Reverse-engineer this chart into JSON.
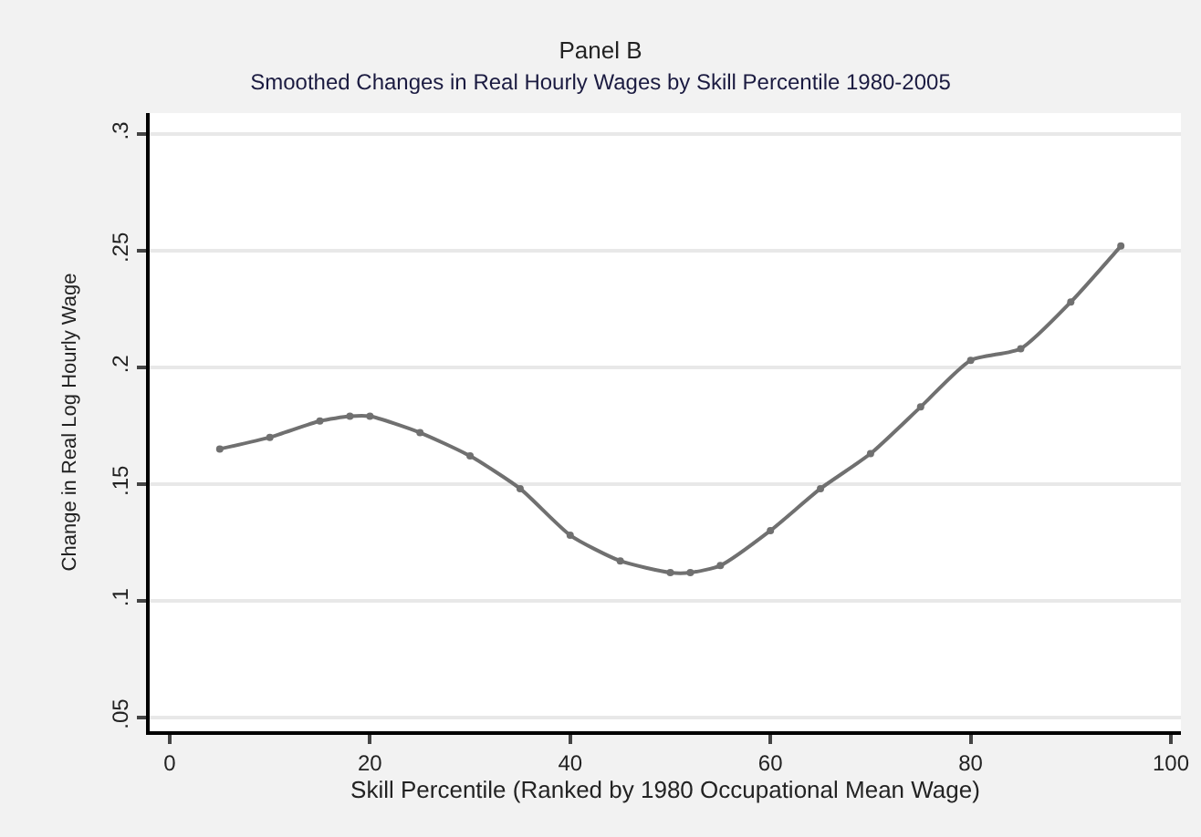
{
  "chart_data": {
    "type": "line",
    "title": "Panel B",
    "subtitle": "Smoothed Changes in Real Hourly Wages by Skill Percentile 1980-2005",
    "xlabel": "Skill Percentile (Ranked by 1980 Occupational Mean Wage)",
    "ylabel": "Change in Real Log Hourly Wage",
    "x": [
      5,
      10,
      15,
      18,
      20,
      25,
      30,
      35,
      40,
      45,
      50,
      52,
      55,
      60,
      65,
      70,
      75,
      80,
      85,
      90,
      95
    ],
    "series": [
      {
        "color": "#707070",
        "values": [
          0.165,
          0.17,
          0.177,
          0.179,
          0.179,
          0.172,
          0.162,
          0.148,
          0.128,
          0.117,
          0.112,
          0.112,
          0.115,
          0.13,
          0.148,
          0.163,
          0.183,
          0.203,
          0.208,
          0.228,
          0.252
        ]
      }
    ],
    "xlim": [
      -2,
      101
    ],
    "xticks": [
      0,
      20,
      40,
      60,
      80,
      100
    ],
    "ylim": [
      0.044,
      0.309
    ],
    "yticks": [
      {
        "value": 0.05,
        "label": ".05"
      },
      {
        "value": 0.1,
        "label": ".1"
      },
      {
        "value": 0.15,
        "label": ".15"
      },
      {
        "value": 0.2,
        "label": ".2"
      },
      {
        "value": 0.25,
        "label": ".25"
      },
      {
        "value": 0.3,
        "label": ".3"
      }
    ],
    "grid": "y",
    "marker": "circle",
    "line_style": "solid"
  }
}
